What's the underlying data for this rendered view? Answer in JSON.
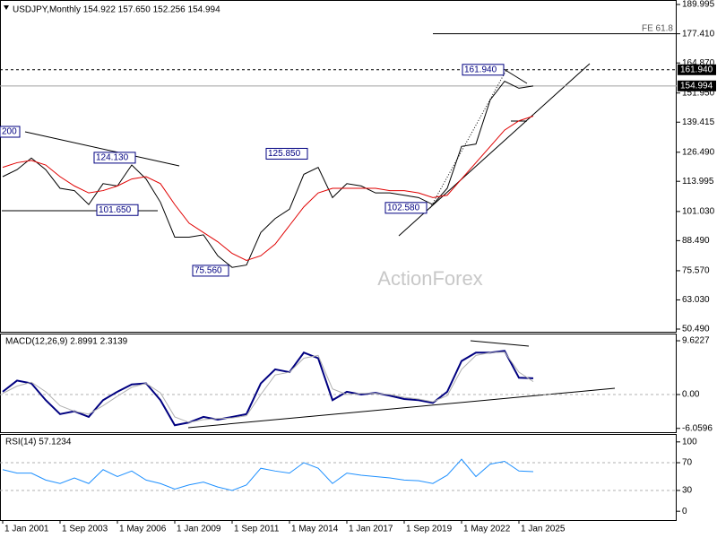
{
  "chart_data": [
    {
      "type": "line",
      "title": "USDJPY,Monthly  154.922 157.650 152.256 154.994",
      "categories": [
        "1 Jan 2001",
        null,
        null,
        null,
        "1 Sep 2003",
        null,
        null,
        null,
        "1 May 2006",
        null,
        null,
        null,
        "1 Jan 2009",
        null,
        null,
        null,
        "1 Sep 2011",
        null,
        null,
        null,
        "1 May 2014",
        null,
        null,
        null,
        "1 Jan 2017",
        null,
        null,
        null,
        "1 Sep 2019",
        null,
        null,
        null,
        "1 May 2022",
        null,
        null,
        null,
        "1 Jan 2025",
        null
      ],
      "series": [
        {
          "color": "#000000",
          "values": [
            116,
            119,
            124,
            119,
            111,
            110,
            104,
            113,
            112,
            121,
            115,
            105,
            90,
            90,
            91,
            82,
            77,
            78,
            92,
            98,
            102,
            117,
            120,
            107,
            113,
            112,
            109,
            109,
            108,
            107,
            104,
            111,
            129,
            130,
            149,
            157,
            154,
            154.994
          ]
        },
        {
          "color": "#e00000",
          "values": [
            120,
            122,
            123,
            121,
            116,
            112,
            109,
            110,
            112,
            115,
            116,
            113,
            104,
            96,
            92,
            88,
            83,
            80,
            82,
            87,
            95,
            103,
            109,
            111,
            111,
            111,
            111,
            110,
            110,
            109,
            107,
            108,
            115,
            122,
            129,
            136,
            140,
            142
          ]
        }
      ],
      "ylim": [
        49.33,
        191.15
      ],
      "yticks": [
        189.995,
        {
          "value": 177.41,
          "label": "177.410"
        },
        {
          "value": 164.87,
          "label": "164.870"
        },
        {
          "value": 151.95,
          "label": "151.950"
        },
        139.415,
        {
          "value": 126.49,
          "label": "126.490"
        },
        113.995,
        {
          "value": 101.03,
          "label": "101.030"
        },
        {
          "value": 88.49,
          "label": "88.490"
        },
        {
          "value": 75.57,
          "label": "75.570"
        },
        {
          "value": 63.03,
          "label": "63.030"
        },
        {
          "value": 50.49,
          "label": "50.490"
        }
      ],
      "levels": [
        {
          "value": 161.94,
          "label": "161.940",
          "style": "dashed"
        },
        {
          "value": 154.994,
          "label": "154.994",
          "style": "solid"
        }
      ],
      "fe_level": {
        "value": 177.41,
        "text": "FE 61.8"
      },
      "annotations": [
        {
          "value": 161.94,
          "label": "161.940"
        },
        {
          "value": 124.13,
          "label": "124.130"
        },
        {
          "value": 125.85,
          "label": "125.850"
        },
        {
          "value": 101.65,
          "label": "101.650"
        },
        {
          "value": 102.58,
          "label": "102.580"
        },
        {
          "value": 75.56,
          "label": "75.560"
        },
        {
          "label": "200"
        }
      ],
      "watermark": "ActionForex"
    },
    {
      "type": "line",
      "title": "MACD(12,26,9) 2.8991 2.3139",
      "series": [
        {
          "color": "#000080",
          "values": [
            0.5,
            2.5,
            2,
            -1,
            -3.5,
            -3,
            -4,
            -1,
            0.5,
            1.8,
            2,
            -1,
            -5.5,
            -5,
            -4,
            -4.5,
            -4,
            -3.5,
            2,
            4.5,
            4,
            7.5,
            6.5,
            -1,
            0.5,
            0,
            0.3,
            -0.2,
            -0.8,
            -1,
            -1.5,
            0.5,
            6,
            7.5,
            7.5,
            7.8,
            3,
            2.8991
          ]
        },
        {
          "color": "#b0b0b0",
          "values": [
            0.2,
            1.5,
            2.2,
            0.5,
            -2,
            -3,
            -3.5,
            -2,
            -0.3,
            1.3,
            2,
            0.3,
            -4,
            -5,
            -4.5,
            -4.3,
            -4.2,
            -3.8,
            0,
            3.5,
            4,
            6.5,
            7,
            1,
            0,
            0.2,
            0.2,
            0,
            -0.5,
            -0.8,
            -1.3,
            -0.2,
            4.5,
            7,
            7.5,
            7.6,
            4,
            2.3139
          ]
        }
      ],
      "ylim": [
        -6.74,
        10.91
      ],
      "yticks": [
        9.6227,
        {
          "value": 0,
          "label": "0.00"
        },
        -6.0596
      ],
      "levels": [
        0
      ]
    },
    {
      "type": "line",
      "title": "RSI(14) 57.1234",
      "series": [
        {
          "color": "#1e90ff",
          "values": [
            60,
            55,
            55,
            45,
            40,
            48,
            40,
            60,
            50,
            58,
            45,
            40,
            32,
            38,
            42,
            35,
            30,
            38,
            62,
            58,
            55,
            70,
            62,
            40,
            55,
            52,
            50,
            48,
            45,
            44,
            40,
            52,
            75,
            50,
            68,
            72,
            58,
            57.1234
          ]
        }
      ],
      "ylim": [
        -12.7,
        111.4
      ],
      "yticks": [
        100,
        70,
        30,
        0
      ],
      "levels": [
        70,
        30
      ]
    }
  ]
}
